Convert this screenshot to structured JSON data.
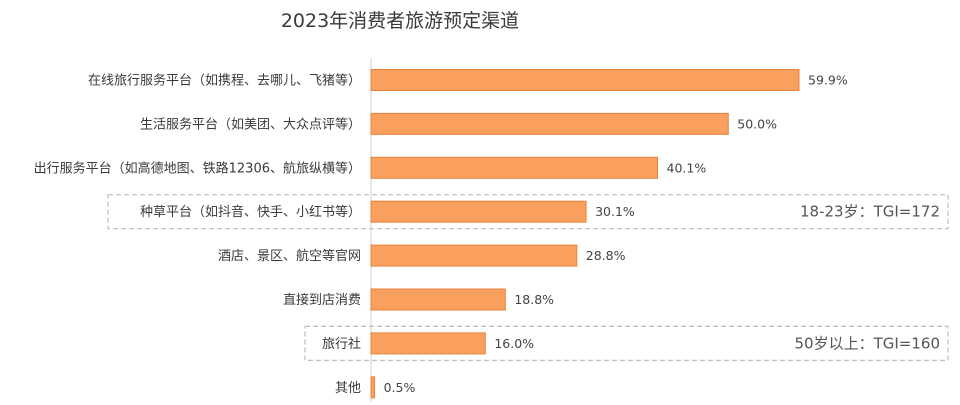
{
  "chart_data": {
    "type": "bar",
    "orientation": "horizontal",
    "title": "2023年消费者旅游预定渠道",
    "categories": [
      "在线旅行服务平台（如携程、去哪儿、飞猪等）",
      "生活服务平台（如美团、大众点评等）",
      "出行服务平台（如高德地图、铁路12306、航旅纵横等）",
      "种草平台（如抖音、快手、小红书等）",
      "酒店、景区、航空等官网",
      "直接到店消费",
      "旅行社",
      "其他"
    ],
    "values": [
      59.9,
      50.0,
      40.1,
      30.1,
      28.8,
      18.8,
      16.0,
      0.5
    ],
    "value_labels": [
      "59.9%",
      "50.0%",
      "40.1%",
      "30.1%",
      "28.8%",
      "18.8%",
      "16.0%",
      "0.5%"
    ],
    "xlim": [
      0,
      100
    ],
    "bar_color": "#f9a05e",
    "bar_edge_color": "#e8823c",
    "annotations": [
      {
        "category_index": 3,
        "text": "18-23岁：TGI=172"
      },
      {
        "category_index": 6,
        "text": "50岁以上：TGI=160"
      }
    ],
    "highlight_box_color": "#bdbdbd"
  }
}
